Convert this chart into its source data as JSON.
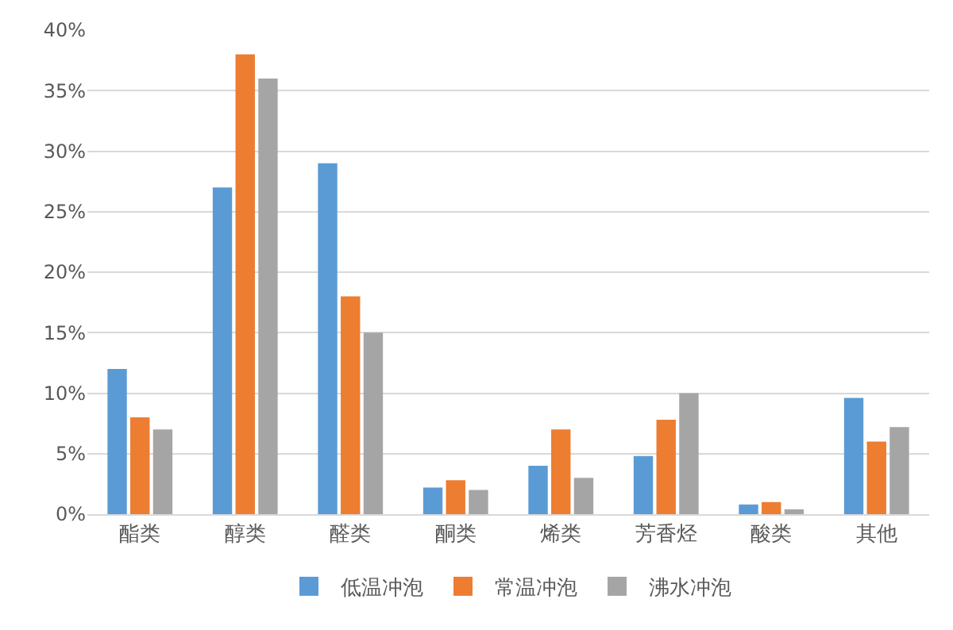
{
  "chart_data": {
    "type": "bar",
    "categories": [
      "酯类",
      "醇类",
      "醛类",
      "酮类",
      "烯类",
      "芳香烃",
      "酸类",
      "其他"
    ],
    "series": [
      {
        "name": "低温冲泡",
        "color": "#5b9bd5",
        "values": [
          12,
          27,
          29,
          2.2,
          4,
          4.8,
          0.8,
          9.6
        ]
      },
      {
        "name": "常温冲泡",
        "color": "#ed7d31",
        "values": [
          8,
          38,
          18,
          2.8,
          7,
          7.8,
          1,
          6
        ]
      },
      {
        "name": "沸水冲泡",
        "color": "#a5a5a5",
        "values": [
          7,
          36,
          15,
          2,
          3,
          10,
          0.4,
          7.2
        ]
      }
    ],
    "ylim": [
      0,
      40
    ],
    "yticks": [
      {
        "value": 0,
        "label": "0%"
      },
      {
        "value": 5,
        "label": "5%"
      },
      {
        "value": 10,
        "label": "10%"
      },
      {
        "value": 15,
        "label": "15%"
      },
      {
        "value": 20,
        "label": "20%"
      },
      {
        "value": 25,
        "label": "25%"
      },
      {
        "value": 30,
        "label": "30%"
      },
      {
        "value": 35,
        "label": "35%"
      },
      {
        "value": 40,
        "label": "40%"
      }
    ],
    "grid": "y",
    "legend": "bottom"
  }
}
